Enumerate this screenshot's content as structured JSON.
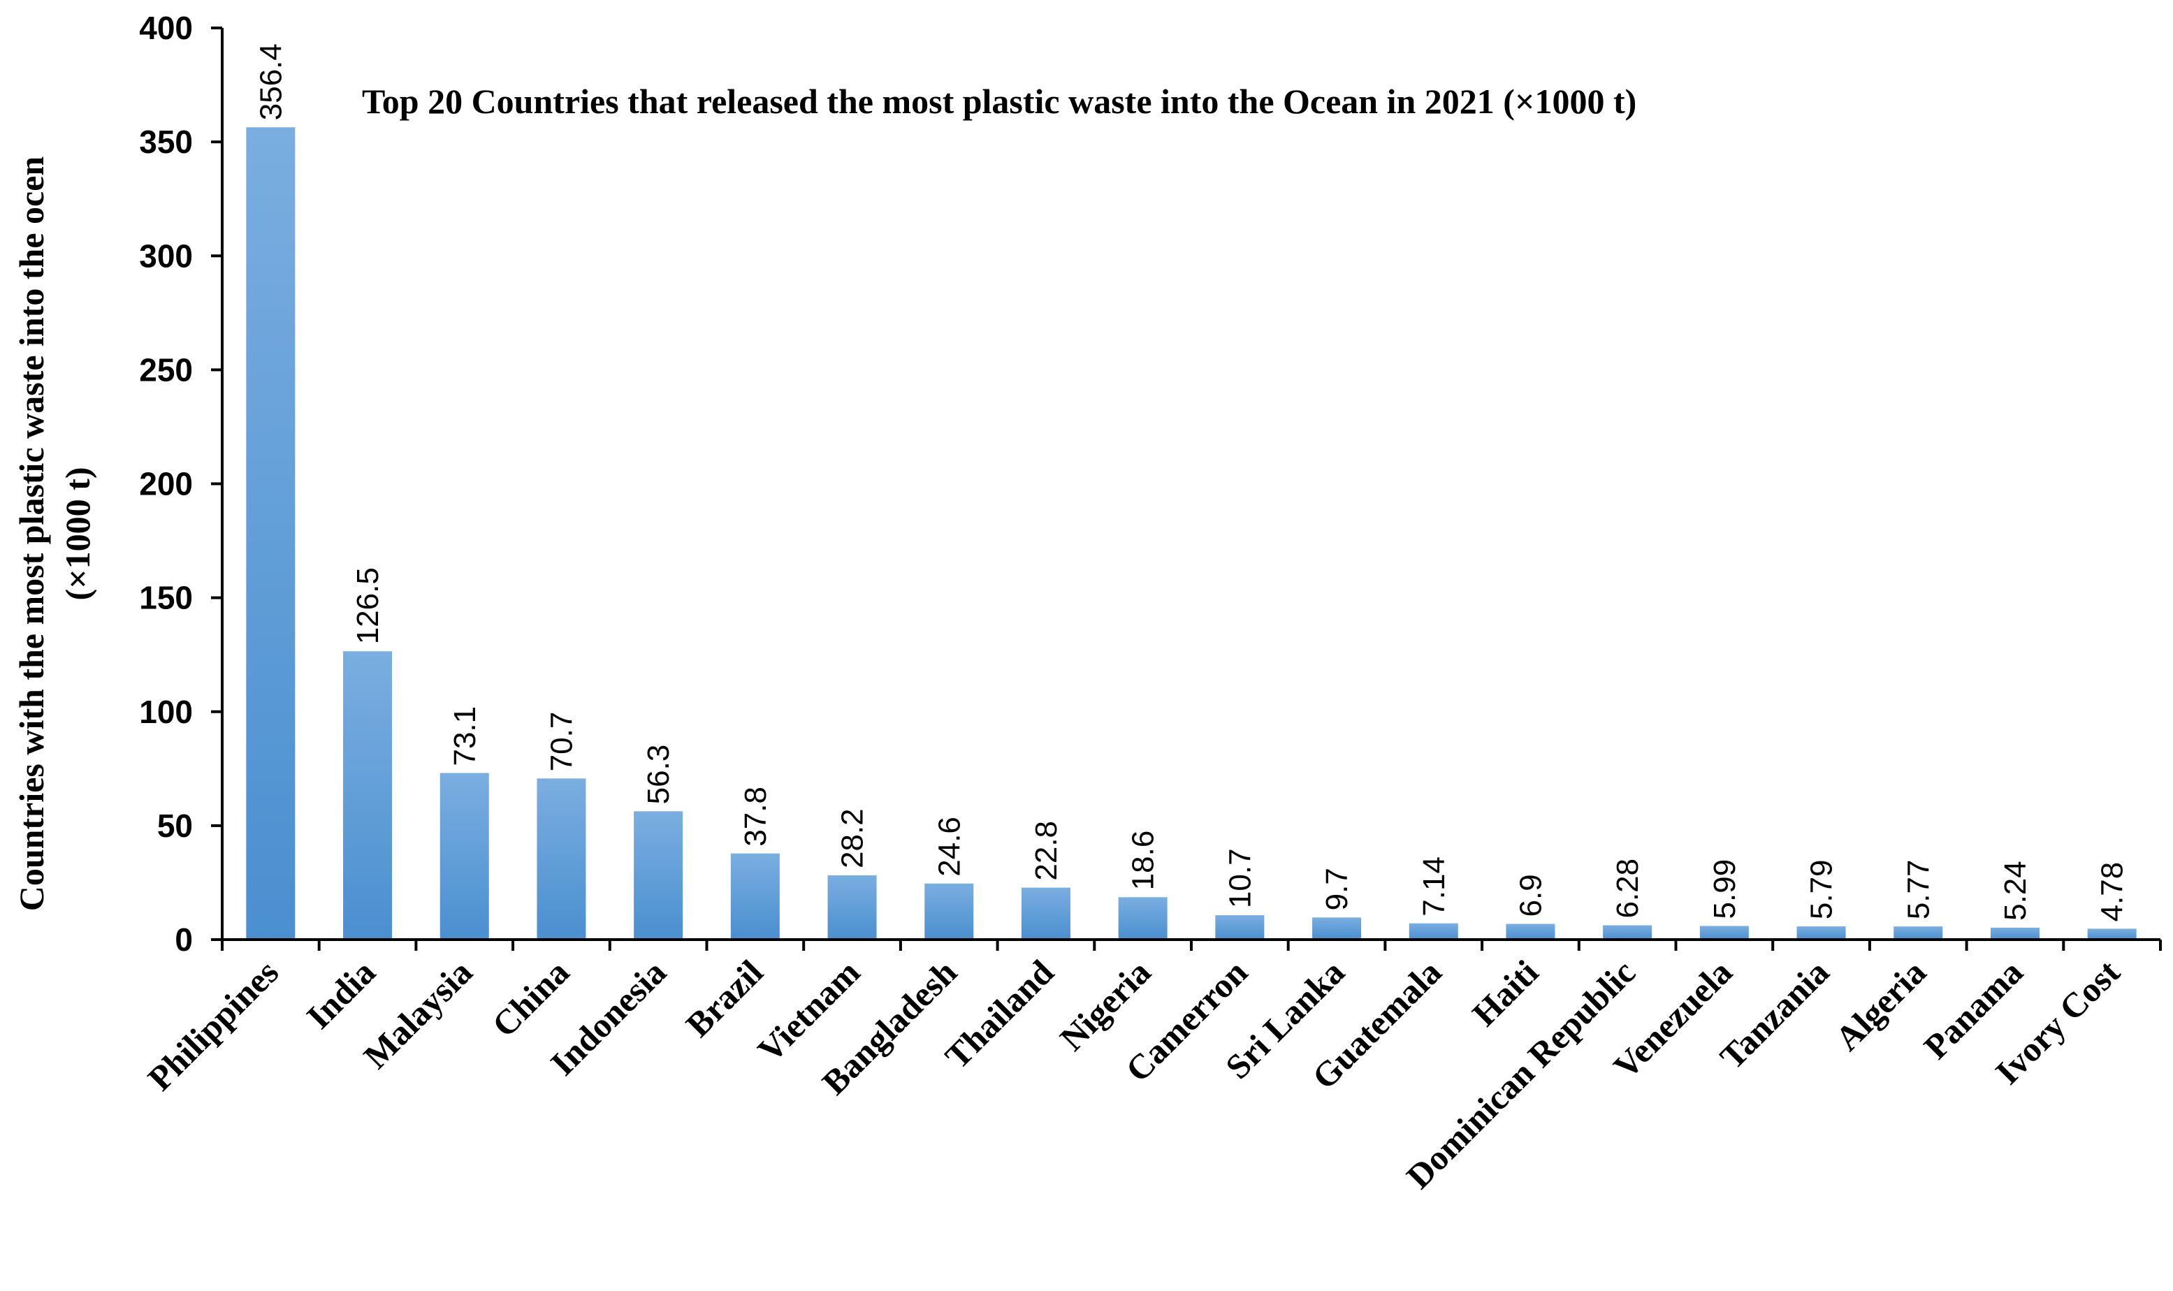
{
  "chart_data": {
    "type": "bar",
    "title": "Top 20 Countries that released the most plastic waste into the Ocean in 2021 (×1000 t)",
    "ylabel_line1": "Countries with the most plastic waste into the ocen",
    "ylabel_line2": "(×1000 t)",
    "xlabel": "",
    "ylim": [
      0,
      400
    ],
    "yticks": [
      0,
      50,
      100,
      150,
      200,
      250,
      300,
      350,
      400
    ],
    "categories": [
      "Philippines",
      "India",
      "Malaysia",
      "China",
      "Indonesia",
      "Brazil",
      "Vietnam",
      "Bangladesh",
      "Thailand",
      "Nigeria",
      "Camerron",
      "Sri Lanka",
      "Guatemala",
      "Haiti",
      "Dominican Republic",
      "Venezuela",
      "Tanzania",
      "Algeria",
      "Panama",
      "Ivory Cost"
    ],
    "values": [
      356.4,
      126.5,
      73.1,
      70.7,
      56.3,
      37.8,
      28.2,
      24.6,
      22.8,
      18.6,
      10.7,
      9.7,
      7.14,
      6.9,
      6.28,
      5.99,
      5.79,
      5.77,
      5.24,
      4.78
    ],
    "value_labels": [
      "356.4",
      "126.5",
      "73.1",
      "70.7",
      "56.3",
      "37.8",
      "28.2",
      "24.6",
      "22.8",
      "18.6",
      "10.7",
      "9.7",
      "7.14",
      "6.9",
      "6.28",
      "5.99",
      "5.79",
      "5.77",
      "5.24",
      "4.78"
    ],
    "grid": false,
    "legend": "none",
    "bar_color_top": "#7aaee0",
    "bar_color_bottom": "#4a8fd0"
  }
}
